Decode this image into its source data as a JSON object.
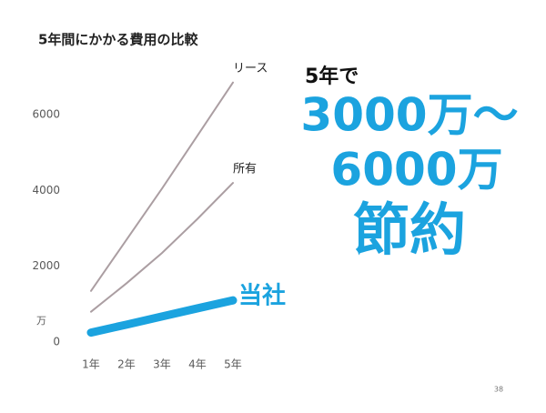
{
  "chart_data": {
    "type": "line",
    "title": "5年間にかかる費用の比較",
    "categories": [
      "1年",
      "2年",
      "3年",
      "4年",
      "5年"
    ],
    "series": [
      {
        "name": "リース",
        "color": "#ab9ea2",
        "values": [
          1350,
          2700,
          4050,
          5450,
          6850
        ]
      },
      {
        "name": "所有",
        "color": "#ab9ea2",
        "values": [
          800,
          1550,
          2350,
          3250,
          4200
        ]
      },
      {
        "name": "当社",
        "color": "#1ba3df",
        "values": [
          250,
          460,
          675,
          890,
          1100
        ]
      }
    ],
    "ylim": [
      0,
      7000
    ],
    "yticks": [
      0,
      2000,
      4000,
      6000
    ],
    "y_unit": "万",
    "grid": false,
    "annotations": [
      "5年で",
      "3000万～",
      "6000万",
      "節約"
    ],
    "page_number": "38"
  }
}
